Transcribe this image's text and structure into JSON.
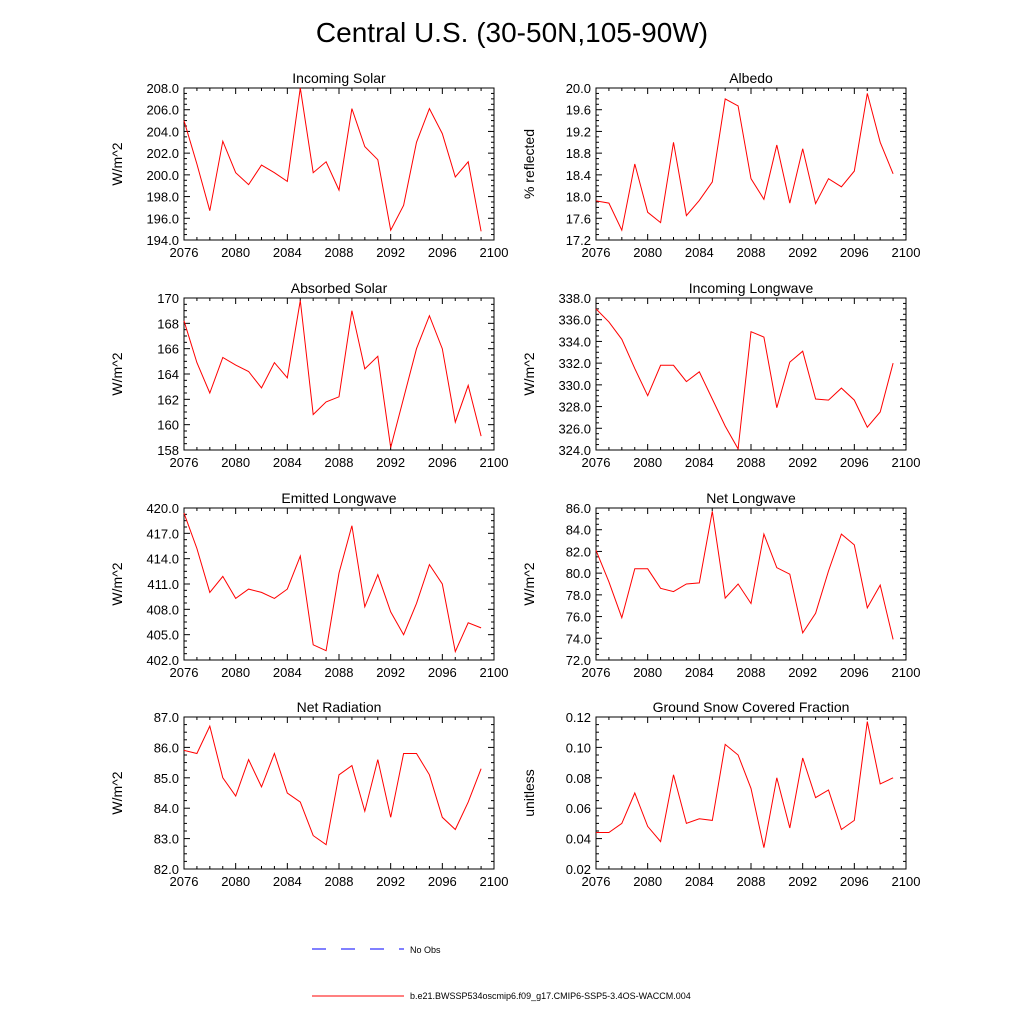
{
  "title": "Central U.S. (30-50N,105-90W)",
  "colors": {
    "series": "#ff0000",
    "obs": "#0000ff",
    "axis": "#000000"
  },
  "legend": {
    "obs_label": "No Obs",
    "series_label": "b.e21.BWSSP534oscmip6.f09_g17.CMIP6-SSP5-3.4OS-WACCM.004"
  },
  "chart_data": [
    {
      "type": "line",
      "title": "Incoming Solar",
      "ylabel": "W/m^2",
      "xlim": [
        2076,
        2100
      ],
      "xticks": [
        2076,
        2080,
        2084,
        2088,
        2092,
        2096,
        2100
      ],
      "ylim": [
        194,
        208
      ],
      "yticks": [
        "194.0",
        "196.0",
        "198.0",
        "200.0",
        "202.0",
        "204.0",
        "206.0",
        "208.0"
      ],
      "x": [
        2076,
        2077,
        2078,
        2079,
        2080,
        2081,
        2082,
        2083,
        2084,
        2085,
        2086,
        2087,
        2088,
        2089,
        2090,
        2091,
        2092,
        2093,
        2094,
        2095,
        2096,
        2097,
        2098,
        2099
      ],
      "values": [
        205.0,
        201.0,
        196.7,
        203.1,
        200.2,
        199.1,
        200.9,
        200.2,
        199.4,
        208.0,
        200.2,
        201.2,
        198.6,
        206.1,
        202.6,
        201.4,
        194.9,
        197.2,
        203.0,
        206.1,
        203.8,
        199.8,
        201.2,
        194.8
      ]
    },
    {
      "type": "line",
      "title": "Albedo",
      "ylabel": "% reflected",
      "xlim": [
        2076,
        2100
      ],
      "xticks": [
        2076,
        2080,
        2084,
        2088,
        2092,
        2096,
        2100
      ],
      "ylim": [
        17.2,
        20.0
      ],
      "yticks": [
        "17.2",
        "17.6",
        "18.0",
        "18.4",
        "18.8",
        "19.2",
        "19.6",
        "20.0"
      ],
      "x": [
        2076,
        2077,
        2078,
        2079,
        2080,
        2081,
        2082,
        2083,
        2084,
        2085,
        2086,
        2087,
        2088,
        2089,
        2090,
        2091,
        2092,
        2093,
        2094,
        2095,
        2096,
        2097,
        2098,
        2099
      ],
      "values": [
        17.92,
        17.88,
        17.38,
        18.6,
        17.71,
        17.52,
        19.0,
        17.65,
        17.93,
        18.27,
        19.8,
        19.67,
        18.33,
        17.95,
        18.95,
        17.88,
        18.88,
        17.87,
        18.33,
        18.18,
        18.47,
        19.9,
        19.0,
        18.42
      ]
    },
    {
      "type": "line",
      "title": "Absorbed Solar",
      "ylabel": "W/m^2",
      "xlim": [
        2076,
        2100
      ],
      "xticks": [
        2076,
        2080,
        2084,
        2088,
        2092,
        2096,
        2100
      ],
      "ylim": [
        158,
        170
      ],
      "yticks": [
        "158",
        "160",
        "162",
        "164",
        "166",
        "168",
        "170"
      ],
      "x": [
        2076,
        2077,
        2078,
        2079,
        2080,
        2081,
        2082,
        2083,
        2084,
        2085,
        2086,
        2087,
        2088,
        2089,
        2090,
        2091,
        2092,
        2093,
        2094,
        2095,
        2096,
        2097,
        2098,
        2099
      ],
      "values": [
        168.2,
        164.9,
        162.5,
        165.3,
        164.7,
        164.2,
        162.9,
        164.9,
        163.7,
        169.8,
        160.8,
        161.8,
        162.2,
        169.0,
        164.4,
        165.4,
        158.2,
        162.1,
        166.0,
        168.6,
        166.0,
        160.2,
        163.1,
        159.1
      ]
    },
    {
      "type": "line",
      "title": "Incoming Longwave",
      "ylabel": "W/m^2",
      "xlim": [
        2076,
        2100
      ],
      "xticks": [
        2076,
        2080,
        2084,
        2088,
        2092,
        2096,
        2100
      ],
      "ylim": [
        324,
        338
      ],
      "yticks": [
        "324.0",
        "326.0",
        "328.0",
        "330.0",
        "332.0",
        "334.0",
        "336.0",
        "338.0"
      ],
      "x": [
        2076,
        2077,
        2078,
        2079,
        2080,
        2081,
        2082,
        2083,
        2084,
        2085,
        2086,
        2087,
        2088,
        2089,
        2090,
        2091,
        2092,
        2093,
        2094,
        2095,
        2096,
        2097,
        2098,
        2099
      ],
      "values": [
        337.0,
        335.8,
        334.2,
        331.5,
        329.0,
        331.8,
        331.8,
        330.3,
        331.2,
        328.7,
        326.2,
        324.1,
        334.9,
        334.4,
        327.9,
        332.1,
        333.1,
        328.7,
        328.6,
        329.7,
        328.6,
        326.1,
        327.5,
        332.0
      ]
    },
    {
      "type": "line",
      "title": "Emitted Longwave",
      "ylabel": "W/m^2",
      "xlim": [
        2076,
        2100
      ],
      "xticks": [
        2076,
        2080,
        2084,
        2088,
        2092,
        2096,
        2100
      ],
      "ylim": [
        402,
        420
      ],
      "yticks": [
        "402.0",
        "405.0",
        "408.0",
        "411.0",
        "414.0",
        "417.0",
        "420.0"
      ],
      "x": [
        2076,
        2077,
        2078,
        2079,
        2080,
        2081,
        2082,
        2083,
        2084,
        2085,
        2086,
        2087,
        2088,
        2089,
        2090,
        2091,
        2092,
        2093,
        2094,
        2095,
        2096,
        2097,
        2098,
        2099
      ],
      "values": [
        419.4,
        415.2,
        410.0,
        411.9,
        409.3,
        410.4,
        410.0,
        409.3,
        410.4,
        414.3,
        403.8,
        403.1,
        412.3,
        417.9,
        408.3,
        412.1,
        407.7,
        405.0,
        408.7,
        413.3,
        411.0,
        403.0,
        406.4,
        405.8
      ]
    },
    {
      "type": "line",
      "title": "Net Longwave",
      "ylabel": "W/m^2",
      "xlim": [
        2076,
        2100
      ],
      "xticks": [
        2076,
        2080,
        2084,
        2088,
        2092,
        2096,
        2100
      ],
      "ylim": [
        72,
        86
      ],
      "yticks": [
        "72.0",
        "74.0",
        "76.0",
        "78.0",
        "80.0",
        "82.0",
        "84.0",
        "86.0"
      ],
      "x": [
        2076,
        2077,
        2078,
        2079,
        2080,
        2081,
        2082,
        2083,
        2084,
        2085,
        2086,
        2087,
        2088,
        2089,
        2090,
        2091,
        2092,
        2093,
        2094,
        2095,
        2096,
        2097,
        2098,
        2099
      ],
      "values": [
        82.1,
        79.2,
        75.9,
        80.4,
        80.4,
        78.6,
        78.3,
        79.0,
        79.1,
        85.7,
        77.7,
        79.0,
        77.2,
        83.6,
        80.5,
        79.9,
        74.5,
        76.3,
        80.2,
        83.6,
        82.6,
        76.8,
        78.9,
        73.9
      ]
    },
    {
      "type": "line",
      "title": "Net Radiation",
      "ylabel": "W/m^2",
      "xlim": [
        2076,
        2100
      ],
      "xticks": [
        2076,
        2080,
        2084,
        2088,
        2092,
        2096,
        2100
      ],
      "ylim": [
        82,
        87
      ],
      "yticks": [
        "82.0",
        "83.0",
        "84.0",
        "85.0",
        "86.0",
        "87.0"
      ],
      "x": [
        2076,
        2077,
        2078,
        2079,
        2080,
        2081,
        2082,
        2083,
        2084,
        2085,
        2086,
        2087,
        2088,
        2089,
        2090,
        2091,
        2092,
        2093,
        2094,
        2095,
        2096,
        2097,
        2098,
        2099
      ],
      "values": [
        85.9,
        85.8,
        86.7,
        85.0,
        84.4,
        85.6,
        84.7,
        85.8,
        84.5,
        84.2,
        83.1,
        82.8,
        85.1,
        85.4,
        83.9,
        85.6,
        83.7,
        85.8,
        85.8,
        85.1,
        83.7,
        83.3,
        84.2,
        85.3
      ]
    },
    {
      "type": "line",
      "title": "Ground Snow Covered Fraction",
      "ylabel": "unitless",
      "xlim": [
        2076,
        2100
      ],
      "xticks": [
        2076,
        2080,
        2084,
        2088,
        2092,
        2096,
        2100
      ],
      "ylim": [
        0.02,
        0.12
      ],
      "yticks": [
        "0.02",
        "0.04",
        "0.06",
        "0.08",
        "0.10",
        "0.12"
      ],
      "x": [
        2076,
        2077,
        2078,
        2079,
        2080,
        2081,
        2082,
        2083,
        2084,
        2085,
        2086,
        2087,
        2088,
        2089,
        2090,
        2091,
        2092,
        2093,
        2094,
        2095,
        2096,
        2097,
        2098,
        2099
      ],
      "values": [
        0.044,
        0.044,
        0.05,
        0.07,
        0.048,
        0.038,
        0.082,
        0.05,
        0.053,
        0.052,
        0.102,
        0.095,
        0.073,
        0.034,
        0.08,
        0.047,
        0.093,
        0.067,
        0.072,
        0.046,
        0.052,
        0.117,
        0.076,
        0.08
      ]
    }
  ]
}
